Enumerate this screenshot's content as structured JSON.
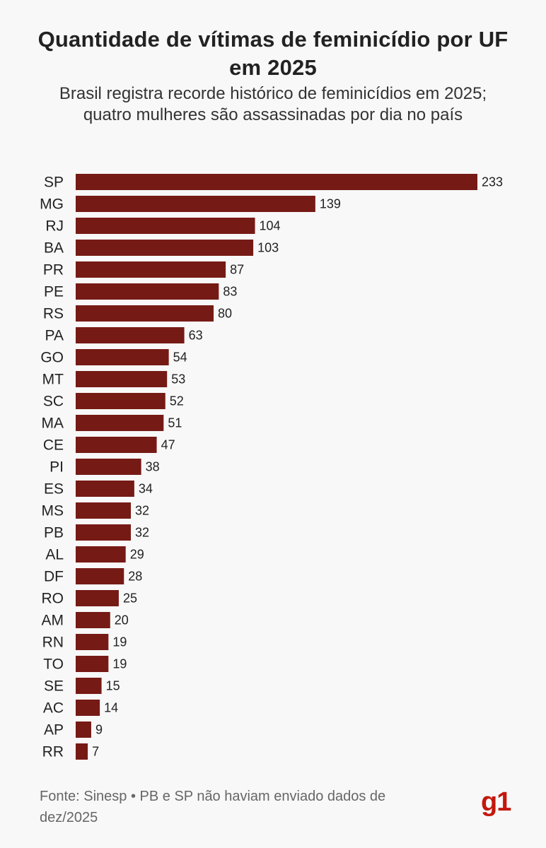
{
  "header": {
    "title": "Quantidade de vítimas de feminicídio por UF em 2025",
    "subtitle_line1": "Brasil registra recorde histórico de feminicídios em 2025;",
    "subtitle_line2": "quatro mulheres são assassinadas por dia no país"
  },
  "footer": {
    "source": "Fonte: Sinesp • PB e SP não haviam enviado dados de dez/2025"
  },
  "logo": {
    "text": "g1",
    "color": "#c4170c"
  },
  "colors": {
    "bar": "#761a15",
    "background": "#f8f8f8"
  },
  "chart_data": {
    "type": "bar",
    "orientation": "horizontal",
    "title": "Quantidade de vítimas de feminicídio por UF em 2025",
    "categories": [
      "SP",
      "MG",
      "RJ",
      "BA",
      "PR",
      "PE",
      "RS",
      "PA",
      "GO",
      "MT",
      "SC",
      "MA",
      "CE",
      "PI",
      "ES",
      "MS",
      "PB",
      "AL",
      "DF",
      "RO",
      "AM",
      "RN",
      "TO",
      "SE",
      "AC",
      "AP",
      "RR"
    ],
    "values": [
      233,
      139,
      104,
      103,
      87,
      83,
      80,
      63,
      54,
      53,
      52,
      51,
      47,
      38,
      34,
      32,
      32,
      29,
      28,
      25,
      20,
      19,
      19,
      15,
      14,
      9,
      7
    ],
    "data_labels": true,
    "grid": false,
    "legend": "none"
  }
}
